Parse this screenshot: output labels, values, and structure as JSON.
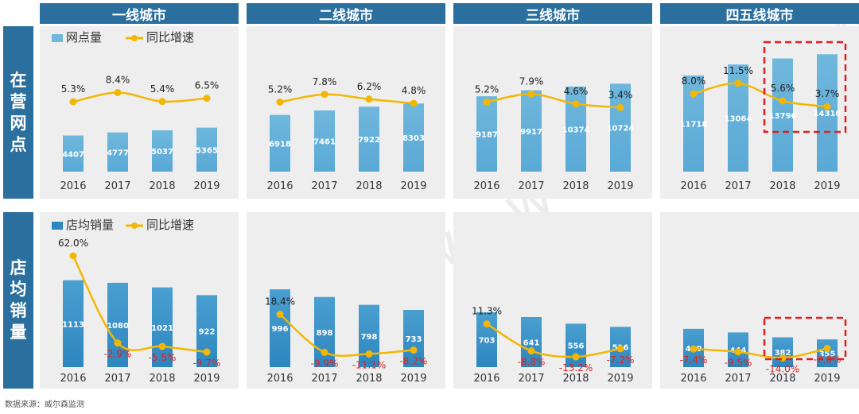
{
  "column_headers": [
    "一线城市",
    "二线城市",
    "三线城市",
    "四五线城市"
  ],
  "row_headers": [
    [
      "在",
      "营",
      "网",
      "点"
    ],
    [
      "店",
      "均",
      "销",
      "量"
    ]
  ],
  "footer": "数据来源：威尔森监测",
  "watermark": "www.way-s.cn",
  "colors": {
    "header": "#2a6f9e",
    "bar_top": "#6fb7dc",
    "bar_bottom": "#2e86bf",
    "line": "#f2b705",
    "negative_label": "#e02020",
    "highlight_box": "#e02020"
  },
  "chart_data": [
    {
      "type": "bar",
      "row": "网点",
      "legend": {
        "bar": "网点量",
        "line": "同比增速"
      },
      "panels": [
        {
          "group": "一线城市",
          "categories": [
            "2016",
            "2017",
            "2018",
            "2019"
          ],
          "values": [
            4407,
            4777,
            5037,
            5365
          ],
          "growth": [
            5.3,
            8.4,
            5.4,
            6.5
          ],
          "growth_labels": [
            "5.3%",
            "8.4%",
            "5.4%",
            "6.5%"
          ]
        },
        {
          "group": "二线城市",
          "categories": [
            "2016",
            "2017",
            "2018",
            "2019"
          ],
          "values": [
            6918,
            7461,
            7922,
            8303
          ],
          "growth": [
            5.2,
            7.8,
            6.2,
            4.8
          ],
          "growth_labels": [
            "5.2%",
            "7.8%",
            "6.2%",
            "4.8%"
          ]
        },
        {
          "group": "三线城市",
          "categories": [
            "2016",
            "2017",
            "2018",
            "2019"
          ],
          "values": [
            9187,
            9917,
            10374,
            10724
          ],
          "growth": [
            5.2,
            7.9,
            4.6,
            3.4
          ],
          "growth_labels": [
            "5.2%",
            "7.9%",
            "4.6%",
            "3.4%"
          ]
        },
        {
          "group": "四五线城市",
          "categories": [
            "2016",
            "2017",
            "2018",
            "2019"
          ],
          "values": [
            11718,
            13064,
            13796,
            14310
          ],
          "growth": [
            8.0,
            11.5,
            5.6,
            3.7
          ],
          "growth_labels": [
            "8.0%",
            "11.5%",
            "5.6%",
            "3.7%"
          ],
          "highlight": [
            "2018",
            "2019"
          ]
        }
      ]
    },
    {
      "type": "bar",
      "row": "店均销量",
      "legend": {
        "bar": "店均销量",
        "line": "同比增速"
      },
      "panels": [
        {
          "group": "一线城市",
          "categories": [
            "2016",
            "2017",
            "2018",
            "2019"
          ],
          "values": [
            1113,
            1080,
            1021,
            922
          ],
          "growth": [
            62.0,
            -2.9,
            -5.5,
            -9.7
          ],
          "growth_labels": [
            "62.0%",
            "-2.9%",
            "-5.5%",
            "-9.7%"
          ]
        },
        {
          "group": "二线城市",
          "categories": [
            "2016",
            "2017",
            "2018",
            "2019"
          ],
          "values": [
            996,
            898,
            798,
            733
          ],
          "growth": [
            18.4,
            -9.9,
            -11.1,
            -8.2
          ],
          "growth_labels": [
            "18.4%",
            "-9.9%",
            "-11.1%",
            "-8.2%"
          ]
        },
        {
          "group": "三线城市",
          "categories": [
            "2016",
            "2017",
            "2018",
            "2019"
          ],
          "values": [
            703,
            641,
            556,
            516
          ],
          "growth": [
            11.3,
            -8.8,
            -13.2,
            -7.2
          ],
          "growth_labels": [
            "11.3%",
            "-8.8%",
            "-13.2%",
            "-7.2%"
          ]
        },
        {
          "group": "四五线城市",
          "categories": [
            "2016",
            "2017",
            "2018",
            "2019"
          ],
          "values": [
            490,
            444,
            382,
            355
          ],
          "growth": [
            -7.4,
            -9.5,
            -14.0,
            -7.0
          ],
          "growth_labels": [
            "-7.4%",
            "-9.5%",
            "-14.0%",
            "-7.0%"
          ],
          "highlight": [
            "2018",
            "2019"
          ]
        }
      ]
    }
  ]
}
